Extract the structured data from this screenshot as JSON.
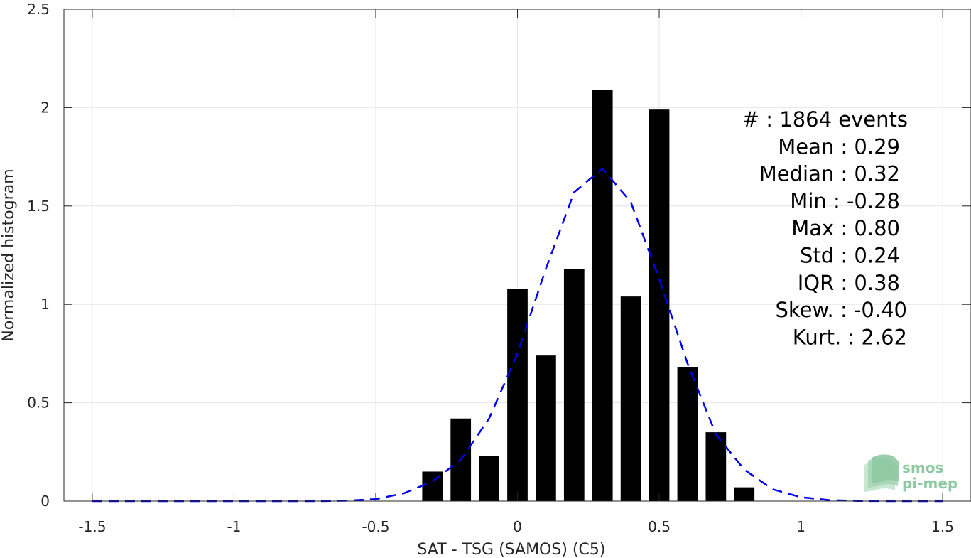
{
  "chart_data": {
    "type": "bar",
    "xlabel": "SAT - TSG (SAMOS) (C5)",
    "ylabel": "Normalized histogram",
    "xlim": [
      -1.6,
      1.6
    ],
    "ylim": [
      0,
      2.5
    ],
    "grid": true,
    "x_ticks": [
      -1.5,
      -1,
      -0.5,
      0,
      0.5,
      1,
      1.5
    ],
    "x_tick_labels": [
      "-1.5",
      "-1",
      "-0.5",
      "0",
      "0.5",
      "1",
      "1.5"
    ],
    "y_ticks": [
      0,
      0.5,
      1,
      1.5,
      2,
      2.5
    ],
    "y_tick_labels": [
      "0",
      "0.5",
      "1",
      "1.5",
      "2",
      "2.5"
    ],
    "bar_width": 0.072,
    "bar_color": "#000000",
    "bars": {
      "x": [
        -0.3,
        -0.2,
        -0.1,
        0.0,
        0.1,
        0.2,
        0.3,
        0.4,
        0.5,
        0.6,
        0.7,
        0.8
      ],
      "values": [
        0.15,
        0.42,
        0.23,
        1.08,
        0.74,
        1.18,
        2.09,
        1.04,
        1.99,
        0.68,
        0.35,
        0.07
      ]
    },
    "fit_curve": {
      "style": "dashed",
      "color": "#0000ee",
      "x": [
        -1.5,
        -1.4,
        -1.3,
        -1.2,
        -1.1,
        -1.0,
        -0.9,
        -0.8,
        -0.7,
        -0.6,
        -0.5,
        -0.4,
        -0.3,
        -0.2,
        -0.1,
        0.0,
        0.1,
        0.2,
        0.3,
        0.4,
        0.5,
        0.6,
        0.7,
        0.8,
        0.9,
        1.0,
        1.1,
        1.2,
        1.3,
        1.4,
        1.5
      ],
      "y": [
        0,
        0,
        0,
        0,
        0,
        0,
        0,
        0,
        0,
        0.002,
        0.01,
        0.04,
        0.1,
        0.21,
        0.42,
        0.75,
        1.18,
        1.57,
        1.69,
        1.52,
        1.13,
        0.7,
        0.34,
        0.16,
        0.06,
        0.02,
        0.005,
        0.001,
        0,
        0,
        0
      ]
    },
    "stats": [
      "#  : 1864 events",
      "Mean : 0.29",
      "Median : 0.32",
      "Min : -0.28",
      "Max : 0.80",
      "Std : 0.24",
      "IQR : 0.38",
      "Skew. : -0.40",
      "Kurt. : 2.62"
    ]
  },
  "logo": {
    "line1": "smos",
    "line2": "pi-mep",
    "color": "#8fc9a3"
  }
}
